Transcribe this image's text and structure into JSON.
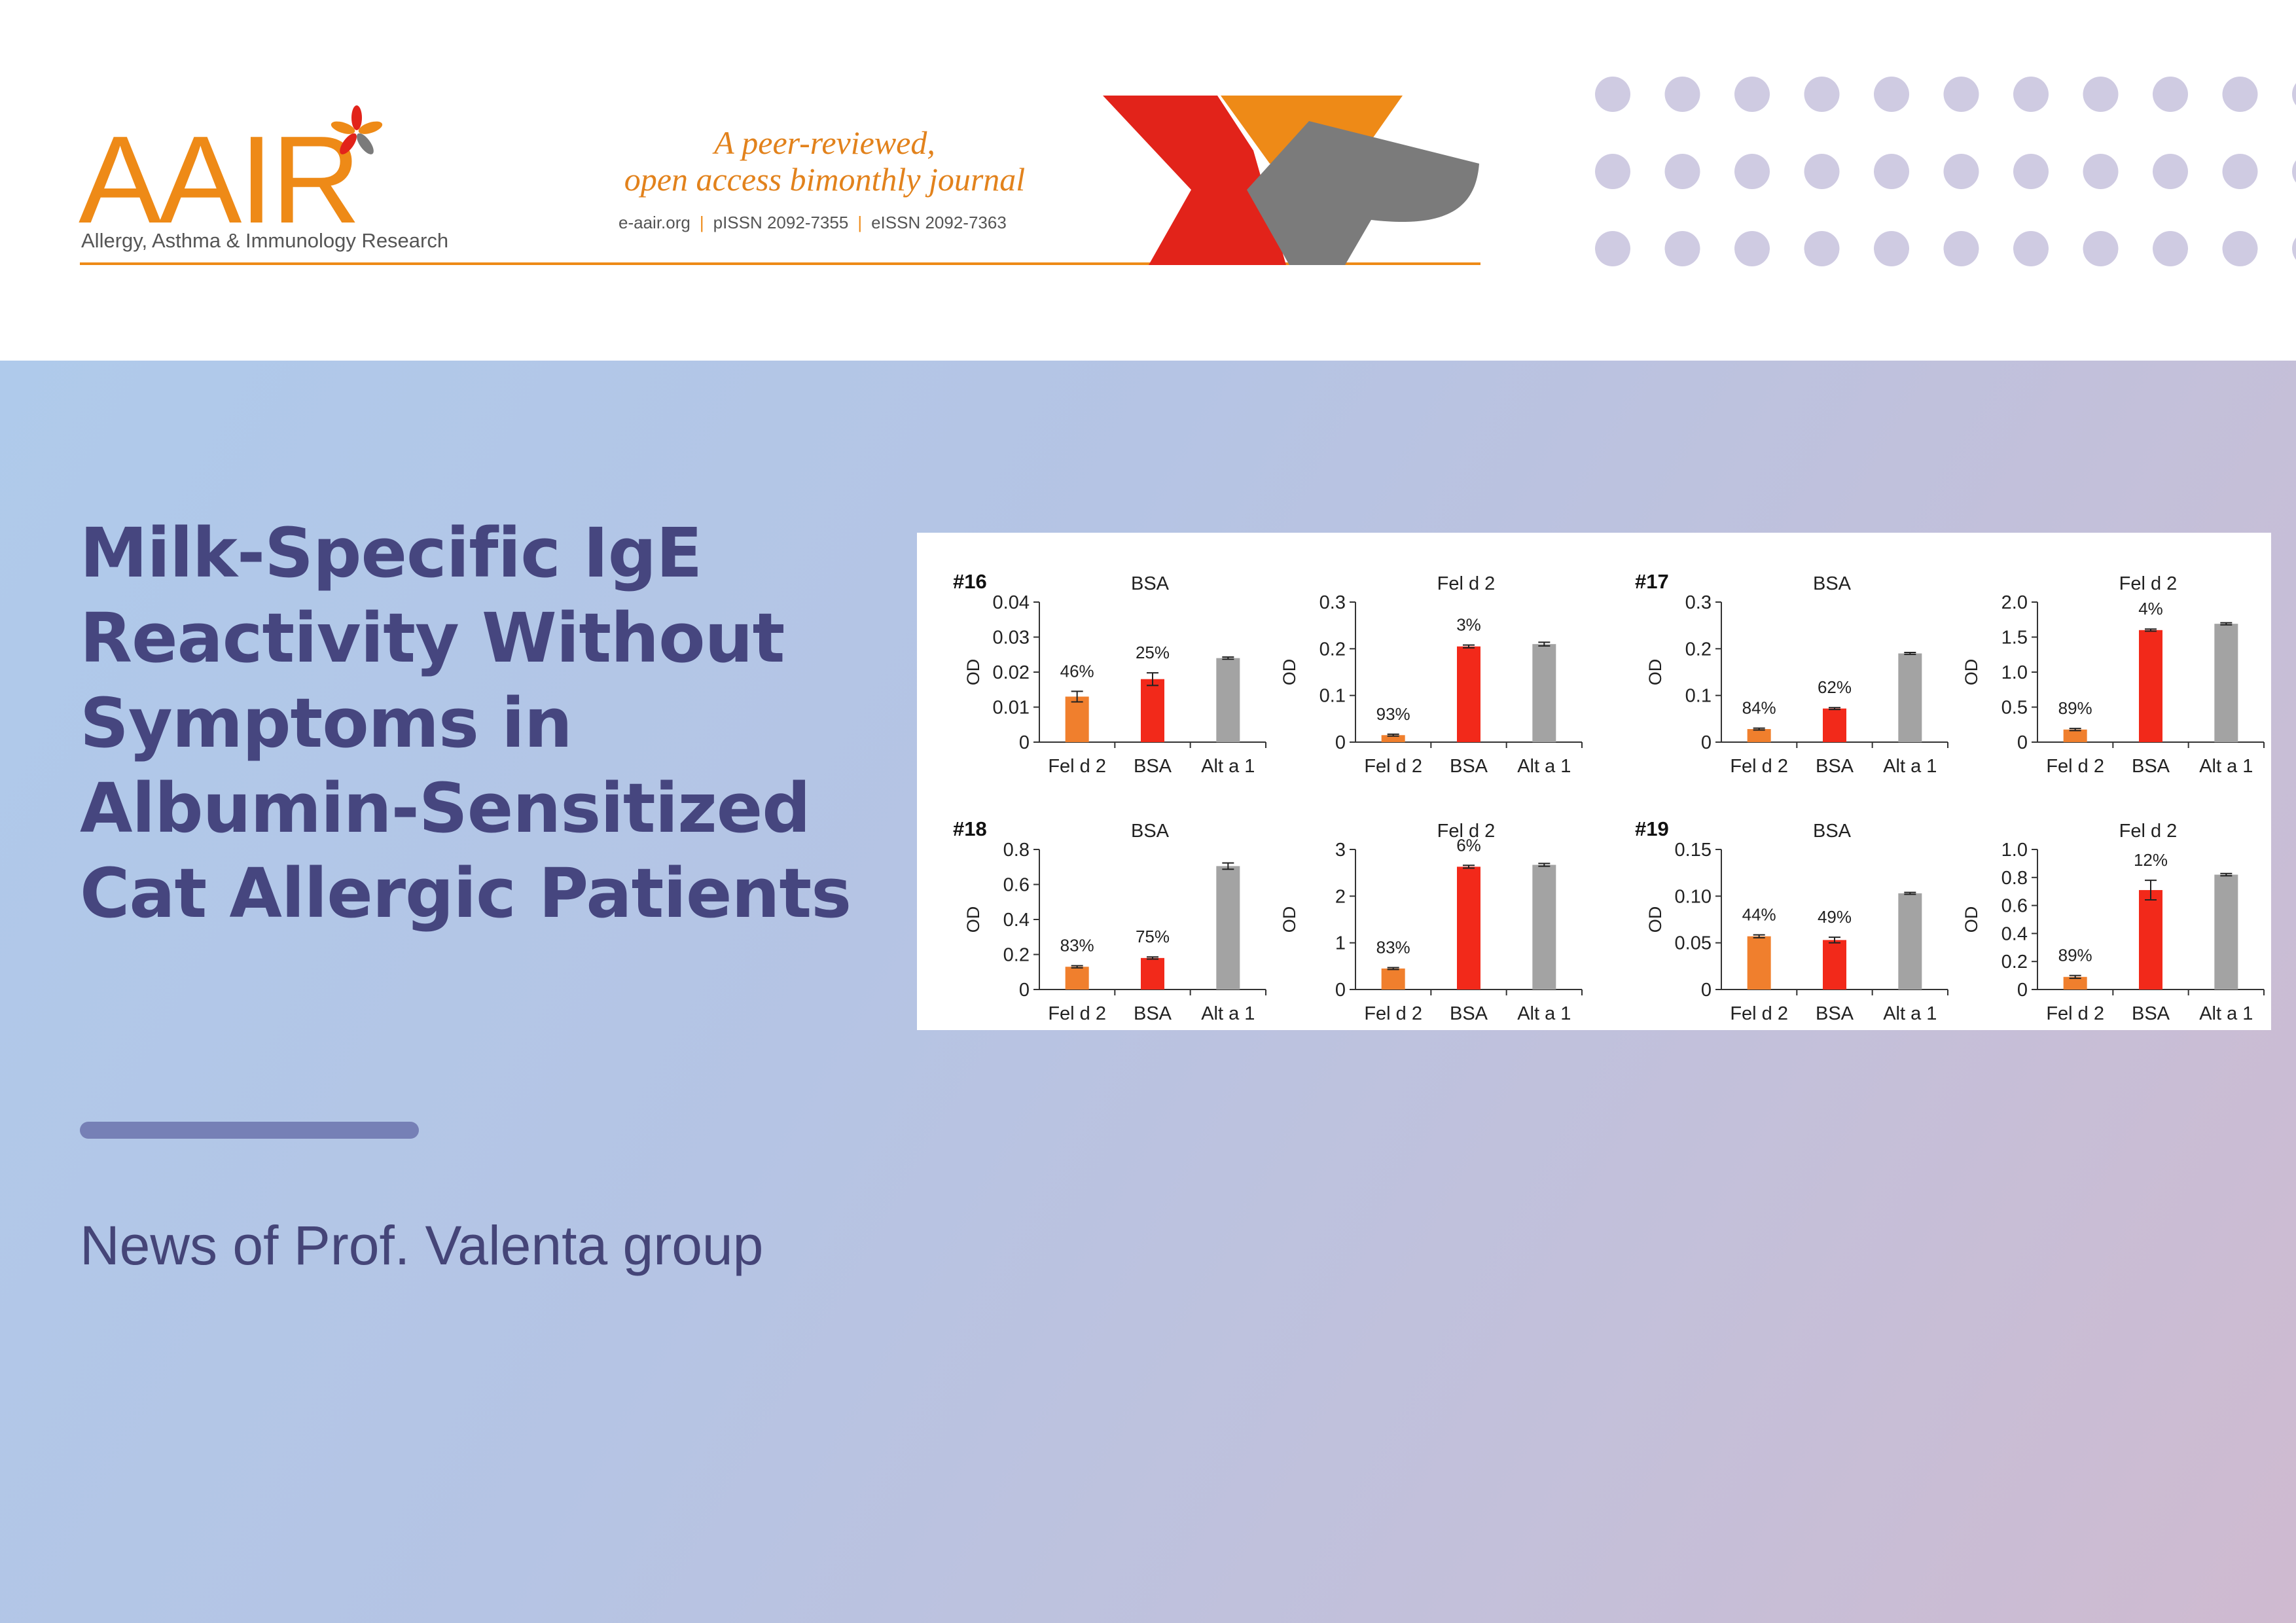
{
  "header": {
    "logo_text": "AAIR",
    "logo_subtitle": "Allergy, Asthma & Immunology Research",
    "tagline_line1": "A peer-reviewed,",
    "tagline_line2": "open access bimonthly journal",
    "site": "e-aair.org",
    "pissn": "pISSN 2092-7355",
    "eissn": "eISSN 2092-7363",
    "issn_separator": "|",
    "colors": {
      "orange": "#ee8a17",
      "red": "#e2231a",
      "gray": "#7b7b7b",
      "dot": "#cfcbe2"
    }
  },
  "article": {
    "title": "Milk-Specific IgE Reactivity Without Symptoms in Albumin-Sensitized Cat Allergic Patients",
    "news_label": "News of Prof. Valenta group",
    "colors": {
      "title": "#46467f",
      "bar": "#7680b6"
    }
  },
  "chart_data": [
    {
      "type": "bar",
      "patient": "#16",
      "title": "BSA",
      "ylabel": "OD",
      "categories": [
        "Fel d 2",
        "BSA",
        "Alt a 1"
      ],
      "values": [
        0.013,
        0.018,
        0.024
      ],
      "errors": [
        0.0015,
        0.0018,
        0.0003
      ],
      "labels": [
        "46%",
        "25%",
        ""
      ],
      "yticks": [
        "0",
        "0.01",
        "0.02",
        "0.03",
        "0.04"
      ],
      "ylim": [
        0,
        0.04
      ],
      "colors": [
        "#f07f2d",
        "#f2291a",
        "#a3a3a3"
      ]
    },
    {
      "type": "bar",
      "patient": "",
      "title": "Fel d 2",
      "ylabel": "OD",
      "categories": [
        "Fel d 2",
        "BSA",
        "Alt a 1"
      ],
      "values": [
        0.015,
        0.205,
        0.21
      ],
      "errors": [
        0.002,
        0.003,
        0.004
      ],
      "labels": [
        "93%",
        "3%",
        ""
      ],
      "yticks": [
        "0",
        "0.1",
        "0.2",
        "0.3"
      ],
      "ylim": [
        0,
        0.3
      ],
      "colors": [
        "#f07f2d",
        "#f2291a",
        "#a3a3a3"
      ]
    },
    {
      "type": "bar",
      "patient": "#17",
      "title": "BSA",
      "ylabel": "OD",
      "categories": [
        "Fel d 2",
        "BSA",
        "Alt a 1"
      ],
      "values": [
        0.028,
        0.072,
        0.19
      ],
      "errors": [
        0.002,
        0.002,
        0.002
      ],
      "labels": [
        "84%",
        "62%",
        ""
      ],
      "yticks": [
        "0",
        "0.1",
        "0.2",
        "0.3"
      ],
      "ylim": [
        0,
        0.3
      ],
      "colors": [
        "#f07f2d",
        "#f2291a",
        "#a3a3a3"
      ]
    },
    {
      "type": "bar",
      "patient": "",
      "title": "Fel d 2",
      "ylabel": "OD",
      "categories": [
        "Fel d 2",
        "BSA",
        "Alt a 1"
      ],
      "values": [
        0.18,
        1.6,
        1.69
      ],
      "errors": [
        0.015,
        0.015,
        0.015
      ],
      "labels": [
        "89%",
        "4%",
        ""
      ],
      "yticks": [
        "0",
        "0.5",
        "1.0",
        "1.5",
        "2.0"
      ],
      "ylim": [
        0,
        2.0
      ],
      "colors": [
        "#f07f2d",
        "#f2291a",
        "#a3a3a3"
      ]
    },
    {
      "type": "bar",
      "patient": "#18",
      "title": "BSA",
      "ylabel": "OD",
      "categories": [
        "Fel d 2",
        "BSA",
        "Alt a 1"
      ],
      "values": [
        0.13,
        0.18,
        0.705
      ],
      "errors": [
        0.006,
        0.006,
        0.018
      ],
      "labels": [
        "83%",
        "75%",
        ""
      ],
      "yticks": [
        "0",
        "0.2",
        "0.4",
        "0.6",
        "0.8"
      ],
      "ylim": [
        0,
        0.8
      ],
      "colors": [
        "#f07f2d",
        "#f2291a",
        "#a3a3a3"
      ]
    },
    {
      "type": "bar",
      "patient": "",
      "title": "Fel d 2",
      "ylabel": "OD",
      "categories": [
        "Fel d 2",
        "BSA",
        "Alt a 1"
      ],
      "values": [
        0.45,
        2.63,
        2.67
      ],
      "errors": [
        0.02,
        0.03,
        0.03
      ],
      "labels": [
        "83%",
        "6%",
        ""
      ],
      "yticks": [
        "0",
        "1",
        "2",
        "3"
      ],
      "ylim": [
        0,
        3
      ],
      "colors": [
        "#f07f2d",
        "#f2291a",
        "#a3a3a3"
      ]
    },
    {
      "type": "bar",
      "patient": "#19",
      "title": "BSA",
      "ylabel": "OD",
      "categories": [
        "Fel d 2",
        "BSA",
        "Alt a 1"
      ],
      "values": [
        0.057,
        0.053,
        0.103
      ],
      "errors": [
        0.0015,
        0.003,
        0.001
      ],
      "labels": [
        "44%",
        "49%",
        ""
      ],
      "yticks": [
        "0",
        "0.05",
        "0.10",
        "0.15"
      ],
      "ylim": [
        0,
        0.15
      ],
      "colors": [
        "#f07f2d",
        "#f2291a",
        "#a3a3a3"
      ]
    },
    {
      "type": "bar",
      "patient": "",
      "title": "Fel d 2",
      "ylabel": "OD",
      "categories": [
        "Fel d 2",
        "BSA",
        "Alt a 1"
      ],
      "values": [
        0.09,
        0.71,
        0.82
      ],
      "errors": [
        0.01,
        0.07,
        0.008
      ],
      "labels": [
        "89%",
        "12%",
        ""
      ],
      "yticks": [
        "0",
        "0.2",
        "0.4",
        "0.6",
        "0.8",
        "1.0"
      ],
      "ylim": [
        0,
        1.0
      ],
      "colors": [
        "#f07f2d",
        "#f2291a",
        "#a3a3a3"
      ]
    }
  ]
}
